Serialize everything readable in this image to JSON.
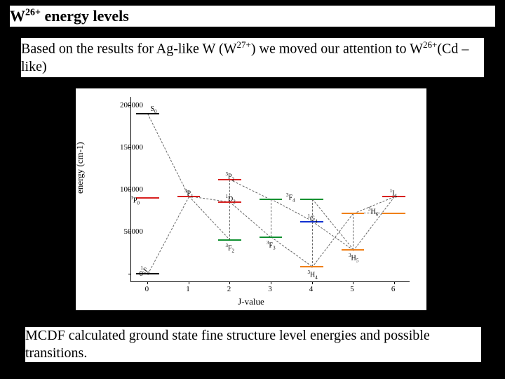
{
  "title_parts": {
    "pre": "W",
    "sup": "26+",
    "post": " energy levels"
  },
  "intro_parts": {
    "t1": "Based on the results for Ag-like W (W",
    "sup1": "27+",
    "t2": ") we moved our attention to W",
    "sup2": "26+",
    "t3": "(Cd –like)"
  },
  "caption": "MCDF calculated ground state fine structure level energies and possible transitions.",
  "chart": {
    "type": "scatter-levels",
    "background_color": "#ffffff",
    "xlabel": "J-value",
    "ylabel": "energy (cm-1)",
    "xlim": [
      -0.4,
      6.4
    ],
    "ylim": [
      -10000,
      210000
    ],
    "xticks": [
      0,
      1,
      2,
      3,
      4,
      5,
      6
    ],
    "yticks": [
      0,
      50000,
      100000,
      150000,
      200000
    ],
    "ytick_labels": [
      "0",
      "50000",
      "100000",
      "150000",
      "200000"
    ],
    "label_fontsize": 13,
    "tick_fontsize": 11,
    "level_halfwidth": 0.28,
    "colors": {
      "black": "#000000",
      "red": "#d8201f",
      "blue": "#1030d0",
      "green": "#109030",
      "orange": "#f08018",
      "grey": "#666666"
    },
    "levels": [
      {
        "j": 0,
        "e": 0,
        "color": "black",
        "label": "1S0",
        "lab_dx": -10,
        "lab_dy": -12
      },
      {
        "j": 0,
        "e": 90000,
        "color": "red",
        "label": "3P0",
        "lab_dx": -24,
        "lab_dy": -4
      },
      {
        "j": 0,
        "e": 190000,
        "color": "black",
        "label": "S0",
        "lab_dx": 4,
        "lab_dy": -12
      },
      {
        "j": 1,
        "e": 92000,
        "color": "red",
        "label": "3P1",
        "lab_dx": -6,
        "lab_dy": -12
      },
      {
        "j": 2,
        "e": 40000,
        "color": "green",
        "label": "3F2",
        "lab_dx": -6,
        "lab_dy": 4
      },
      {
        "j": 2,
        "e": 85000,
        "color": "red",
        "label": "1D2",
        "lab_dx": -6,
        "lab_dy": -12
      },
      {
        "j": 2,
        "e": 112000,
        "color": "red",
        "label": "3P2",
        "lab_dx": -6,
        "lab_dy": -12
      },
      {
        "j": 3,
        "e": 43000,
        "color": "green",
        "label": "3F3",
        "lab_dx": -6,
        "lab_dy": 4
      },
      {
        "j": 3,
        "e": 88000,
        "color": "green",
        "label": "3F4",
        "lab_dx": 22,
        "lab_dy": -10
      },
      {
        "j": 4,
        "e": 8000,
        "color": "orange",
        "label": "3H4",
        "lab_dx": -6,
        "lab_dy": 4
      },
      {
        "j": 4,
        "e": 62000,
        "color": "blue",
        "label": "1G4",
        "lab_dx": -6,
        "lab_dy": -12
      },
      {
        "j": 4,
        "e": 88000,
        "color": "green",
        "label": "",
        "lab_dx": 0,
        "lab_dy": 0
      },
      {
        "j": 5,
        "e": 28000,
        "color": "orange",
        "label": "3H5",
        "lab_dx": -6,
        "lab_dy": 4
      },
      {
        "j": 5,
        "e": 72000,
        "color": "orange",
        "label": "3H6",
        "lab_dx": 22,
        "lab_dy": -10
      },
      {
        "j": 6,
        "e": 72000,
        "color": "orange",
        "label": "",
        "lab_dx": 0,
        "lab_dy": 0
      },
      {
        "j": 6,
        "e": 92000,
        "color": "red",
        "label": "1I6",
        "lab_dx": -6,
        "lab_dy": -12
      }
    ],
    "transitions": [
      {
        "from": [
          0,
          190000
        ],
        "to": [
          1,
          92000
        ]
      },
      {
        "from": [
          1,
          92000
        ],
        "to": [
          0,
          0
        ]
      },
      {
        "from": [
          1,
          92000
        ],
        "to": [
          2,
          85000
        ]
      },
      {
        "from": [
          1,
          92000
        ],
        "to": [
          2,
          40000
        ]
      },
      {
        "from": [
          2,
          112000
        ],
        "to": [
          2,
          85000
        ]
      },
      {
        "from": [
          2,
          112000
        ],
        "to": [
          3,
          88000
        ]
      },
      {
        "from": [
          2,
          85000
        ],
        "to": [
          2,
          40000
        ]
      },
      {
        "from": [
          2,
          85000
        ],
        "to": [
          3,
          43000
        ]
      },
      {
        "from": [
          3,
          88000
        ],
        "to": [
          4,
          62000
        ]
      },
      {
        "from": [
          3,
          88000
        ],
        "to": [
          3,
          43000
        ]
      },
      {
        "from": [
          3,
          43000
        ],
        "to": [
          4,
          8000
        ]
      },
      {
        "from": [
          4,
          88000
        ],
        "to": [
          4,
          62000
        ]
      },
      {
        "from": [
          4,
          88000
        ],
        "to": [
          5,
          28000
        ]
      },
      {
        "from": [
          4,
          62000
        ],
        "to": [
          5,
          28000
        ]
      },
      {
        "from": [
          4,
          62000
        ],
        "to": [
          4,
          8000
        ]
      },
      {
        "from": [
          5,
          72000
        ],
        "to": [
          4,
          8000
        ]
      },
      {
        "from": [
          5,
          72000
        ],
        "to": [
          5,
          28000
        ]
      },
      {
        "from": [
          5,
          72000
        ],
        "to": [
          6,
          72000
        ]
      },
      {
        "from": [
          6,
          92000
        ],
        "to": [
          5,
          72000
        ]
      },
      {
        "from": [
          6,
          92000
        ],
        "to": [
          5,
          28000
        ]
      }
    ]
  }
}
